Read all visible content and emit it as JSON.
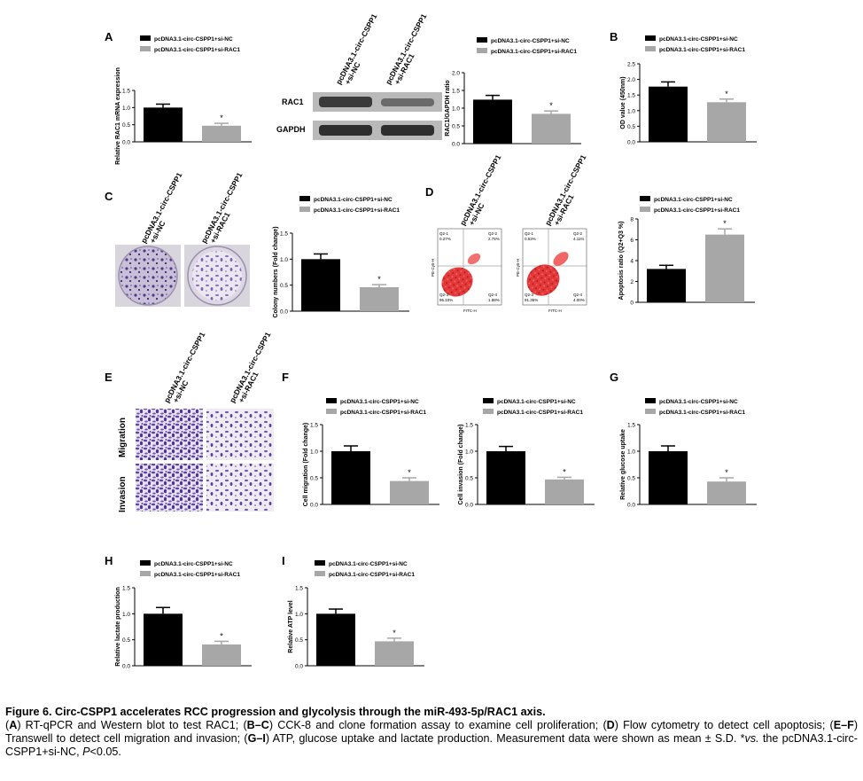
{
  "legend": {
    "nc": "pcDNA3.1-circ-CSPP1+si-NC",
    "rac1": "pcDNA3.1-circ-CSPP1+si-RAC1"
  },
  "group_labels": {
    "nc_line1": "pcDNA3.1-circ-CSPP1",
    "nc_line2": "+si-NC",
    "rac1_line1": "pcDNA3.1-circ-CSPP1",
    "rac1_line2": "+si-RAC1",
    "nc_line1_e": "pcDNA3.1-circ-CSPP1",
    "rac1_line1_e": "pcDNA3.1-circ-CSPP1"
  },
  "panels": {
    "A": "A",
    "B": "B",
    "C": "C",
    "D": "D",
    "E": "E",
    "F": "F",
    "G": "G",
    "H": "H",
    "I": "I"
  },
  "western": {
    "rac1_label": "RAC1",
    "gapdh_label": "GAPDH"
  },
  "transwell": {
    "migration": "Migration",
    "invasion": "Invasion"
  },
  "flow": {
    "q1_nc": "Q2-1",
    "q1v_nc": "0.27%",
    "q2_nc": "Q2-2",
    "q2v_nc": "2.75%",
    "q3_nc": "Q2-3",
    "q3v_nc": "95.10%",
    "q4_nc": "Q2-4",
    "q4v_nc": "1.88%",
    "q1_r": "Q2-1",
    "q1v_r": "0.53%",
    "q2_r": "Q2-2",
    "q2v_r": "4.11%",
    "q3_r": "Q2-3",
    "q3v_r": "91.36%",
    "q4_r": "Q2-4",
    "q4v_r": "4.00%",
    "xlabel": "FITC-H",
    "ylabel": "PE-Cy5-H"
  },
  "sig": "*",
  "caption": {
    "title": "Figure 6. Circ-CSPP1 accelerates RCC progression and glycolysis through the miR-493-5p/RAC1 axis.",
    "body_html": "(<b>A</b>) RT-qPCR and Western blot to test RAC1; (<b>B–C</b>) CCK-8 and clone formation assay to examine cell proliferation; (<b>D</b>) Flow cytometry to detect cell apoptosis; (<b>E–F</b>) Transwell to detect cell migration and invasion; (<b>G–I</b>) ATP, glucose uptake and lactate production. Measurement data were shown as mean ± S.D. *<i>vs.</i> the pcDNA3.1-circ-CSPP1+si-NC, <i>P</i>&lt;0.05."
  },
  "chart_data": [
    {
      "id": "A1",
      "type": "bar",
      "ylabel": "Relative RAC1 mRNA expression",
      "ylim": [
        0,
        1.5
      ],
      "ticks": [
        "0.0",
        "0.5",
        "1.0",
        "1.5"
      ],
      "tickvals": [
        0,
        0.5,
        1.0,
        1.5
      ],
      "values": [
        1.0,
        0.47
      ],
      "errors": [
        0.1,
        0.07
      ],
      "sig": [
        false,
        true
      ],
      "series": [
        "pcDNA3.1-circ-CSPP1+si-NC",
        "pcDNA3.1-circ-CSPP1+si-RAC1"
      ]
    },
    {
      "id": "A2",
      "type": "bar",
      "ylabel": "RAC1/GAPDH ratio",
      "ylim": [
        0,
        2.0
      ],
      "ticks": [
        "0.0",
        "0.5",
        "1.0",
        "1.5",
        "2.0"
      ],
      "tickvals": [
        0,
        0.5,
        1.0,
        1.5,
        2.0
      ],
      "values": [
        1.24,
        0.84
      ],
      "errors": [
        0.12,
        0.08
      ],
      "sig": [
        false,
        true
      ],
      "series": [
        "pcDNA3.1-circ-CSPP1+si-NC",
        "pcDNA3.1-circ-CSPP1+si-RAC1"
      ]
    },
    {
      "id": "B",
      "type": "bar",
      "ylabel": "OD value (450nm)",
      "ylim": [
        0,
        2.5
      ],
      "ticks": [
        "0.0",
        "0.5",
        "1.0",
        "1.5",
        "2.0",
        "2.5"
      ],
      "tickvals": [
        0,
        0.5,
        1.0,
        1.5,
        2.0,
        2.5
      ],
      "values": [
        1.77,
        1.27
      ],
      "errors": [
        0.15,
        0.1
      ],
      "sig": [
        false,
        true
      ],
      "series": [
        "pcDNA3.1-circ-CSPP1+si-NC",
        "pcDNA3.1-circ-CSPP1+si-RAC1"
      ]
    },
    {
      "id": "C",
      "type": "bar",
      "ylabel": "Colony numbers (Fold change)",
      "ylim": [
        0,
        1.5
      ],
      "ticks": [
        "0.0",
        "0.5",
        "1.0",
        "1.5"
      ],
      "tickvals": [
        0,
        0.5,
        1.0,
        1.5
      ],
      "values": [
        1.0,
        0.46
      ],
      "errors": [
        0.1,
        0.05
      ],
      "sig": [
        false,
        true
      ],
      "series": [
        "pcDNA3.1-circ-CSPP1+si-NC",
        "pcDNA3.1-circ-CSPP1+si-RAC1"
      ]
    },
    {
      "id": "D",
      "type": "bar",
      "ylabel": "Apoptosis ratio (Q2+Q3 %)",
      "ylim": [
        0,
        8
      ],
      "ticks": [
        "0",
        "2",
        "4",
        "6",
        "8"
      ],
      "tickvals": [
        0,
        2,
        4,
        6,
        8
      ],
      "values": [
        3.2,
        6.5
      ],
      "errors": [
        0.35,
        0.55
      ],
      "sig": [
        false,
        true
      ],
      "series": [
        "pcDNA3.1-circ-CSPP1+si-NC",
        "pcDNA3.1-circ-CSPP1+si-RAC1"
      ]
    },
    {
      "id": "F1",
      "type": "bar",
      "ylabel": "Cell migration (Fold change)",
      "ylim": [
        0,
        1.5
      ],
      "ticks": [
        "0.0",
        "0.5",
        "1.0",
        "1.5"
      ],
      "tickvals": [
        0,
        0.5,
        1.0,
        1.5
      ],
      "values": [
        1.0,
        0.44
      ],
      "errors": [
        0.1,
        0.06
      ],
      "sig": [
        false,
        true
      ],
      "series": [
        "pcDNA3.1-circ-CSPP1+si-NC",
        "pcDNA3.1-circ-CSPP1+si-RAC1"
      ]
    },
    {
      "id": "F2",
      "type": "bar",
      "ylabel": "Cell invasion (Fold change)",
      "ylim": [
        0,
        1.5
      ],
      "ticks": [
        "0.0",
        "0.5",
        "1.0",
        "1.5"
      ],
      "tickvals": [
        0,
        0.5,
        1.0,
        1.5
      ],
      "values": [
        1.0,
        0.47
      ],
      "errors": [
        0.09,
        0.04
      ],
      "sig": [
        false,
        true
      ],
      "series": [
        "pcDNA3.1-circ-CSPP1+si-NC",
        "pcDNA3.1-circ-CSPP1+si-RAC1"
      ]
    },
    {
      "id": "G",
      "type": "bar",
      "ylabel": "Relative glucose uptake",
      "ylim": [
        0,
        1.5
      ],
      "ticks": [
        "0.0",
        "0.5",
        "1.0",
        "1.5"
      ],
      "tickvals": [
        0,
        0.5,
        1.0,
        1.5
      ],
      "values": [
        1.0,
        0.43
      ],
      "errors": [
        0.1,
        0.07
      ],
      "sig": [
        false,
        true
      ],
      "series": [
        "pcDNA3.1-circ-CSPP1+si-NC",
        "pcDNA3.1-circ-CSPP1+si-RAC1"
      ]
    },
    {
      "id": "H",
      "type": "bar",
      "ylabel": "Relative lactate production",
      "ylim": [
        0,
        1.5
      ],
      "ticks": [
        "0.0",
        "0.5",
        "1.0",
        "1.5"
      ],
      "tickvals": [
        0,
        0.5,
        1.0,
        1.5
      ],
      "values": [
        1.0,
        0.41
      ],
      "errors": [
        0.12,
        0.06
      ],
      "sig": [
        false,
        true
      ],
      "series": [
        "pcDNA3.1-circ-CSPP1+si-NC",
        "pcDNA3.1-circ-CSPP1+si-RAC1"
      ]
    },
    {
      "id": "I",
      "type": "bar",
      "ylabel": "Relative ATP level",
      "ylim": [
        0,
        1.5
      ],
      "ticks": [
        "0.0",
        "0.5",
        "1.0",
        "1.5"
      ],
      "tickvals": [
        0,
        0.5,
        1.0,
        1.5
      ],
      "values": [
        1.0,
        0.47
      ],
      "errors": [
        0.09,
        0.06
      ],
      "sig": [
        false,
        true
      ],
      "series": [
        "pcDNA3.1-circ-CSPP1+si-NC",
        "pcDNA3.1-circ-CSPP1+si-RAC1"
      ]
    }
  ]
}
